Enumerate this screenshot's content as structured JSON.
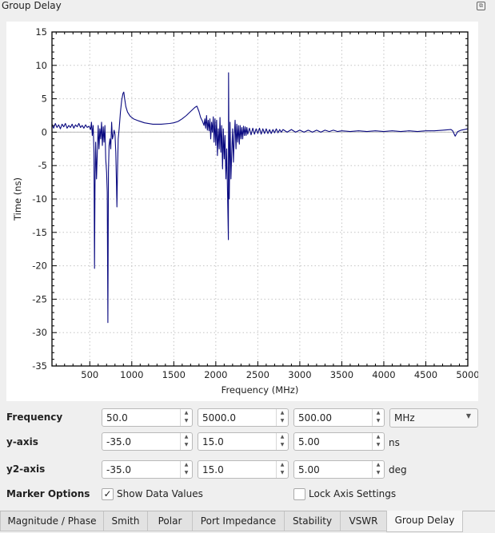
{
  "window": {
    "title": "Group Delay"
  },
  "controls": {
    "frequency": {
      "label": "Frequency",
      "start": "50.0",
      "stop": "5000.0",
      "step": "500.00",
      "unit": "MHz"
    },
    "y_axis": {
      "label": "y-axis",
      "min": "-35.0",
      "max": "15.0",
      "step": "5.00",
      "unit": "ns"
    },
    "y2_axis": {
      "label": "y2-axis",
      "min": "-35.0",
      "max": "15.0",
      "step": "5.00",
      "unit": "deg"
    },
    "marker": {
      "label": "Marker Options",
      "show_data_values": "Show Data Values",
      "show_checked": true,
      "lock_axis": "Lock Axis Settings",
      "lock_checked": false
    }
  },
  "tabs": [
    {
      "label": "Magnitude / Phase"
    },
    {
      "label": "Smith"
    },
    {
      "label": "Polar"
    },
    {
      "label": "Port Impedance"
    },
    {
      "label": "Stability"
    },
    {
      "label": "VSWR"
    },
    {
      "label": "Group Delay",
      "active": true
    }
  ],
  "chart_data": {
    "type": "line",
    "xlabel": "Frequency (MHz)",
    "ylabel": "Time (ns)",
    "xlim": [
      50,
      5000
    ],
    "ylim": [
      -35,
      15
    ],
    "xticks": [
      "500",
      "1000",
      "1500",
      "2000",
      "2500",
      "3000",
      "3500",
      "4000",
      "4500",
      "5000"
    ],
    "yticks": [
      "15",
      "10",
      "5",
      "0",
      "-5",
      "-10",
      "-15",
      "-20",
      "-25",
      "-30",
      "-35"
    ],
    "grid": true,
    "line_color": "#0a0a80",
    "series": [
      {
        "x": [
          50,
          70,
          90,
          110,
          130,
          150,
          170,
          190,
          210,
          230,
          250,
          270,
          290,
          310,
          330,
          350,
          370,
          390,
          410,
          430,
          450,
          470,
          490,
          510,
          520,
          530,
          540,
          550,
          556,
          562,
          570,
          580,
          590,
          600,
          610,
          620,
          630,
          640,
          650,
          660,
          670,
          680,
          690,
          700,
          708,
          715,
          722,
          730,
          740,
          750,
          760,
          770,
          780,
          790,
          800,
          810,
          818,
          823,
          830,
          838,
          850,
          865,
          880,
          895,
          905,
          915,
          930,
          950,
          980,
          1020,
          1080,
          1150,
          1250,
          1350,
          1450,
          1500,
          1550,
          1600,
          1650,
          1700,
          1750,
          1775,
          1800,
          1820,
          1840,
          1860,
          1870,
          1880,
          1890,
          1900,
          1910,
          1920,
          1930,
          1940,
          1950,
          1960,
          1970,
          1980,
          1990,
          2000,
          2010,
          2020,
          2030,
          2040,
          2050,
          2060,
          2070,
          2080,
          2090,
          2100,
          2110,
          2120,
          2130,
          2140,
          2150,
          2152,
          2160,
          2170,
          2180,
          2190,
          2200,
          2210,
          2220,
          2230,
          2240,
          2250,
          2260,
          2270,
          2280,
          2290,
          2300,
          2310,
          2320,
          2330,
          2340,
          2350,
          2360,
          2370,
          2380,
          2400,
          2420,
          2440,
          2460,
          2480,
          2500,
          2520,
          2540,
          2560,
          2580,
          2600,
          2620,
          2640,
          2660,
          2680,
          2700,
          2720,
          2740,
          2760,
          2780,
          2800,
          2850,
          2900,
          2950,
          3000,
          3050,
          3100,
          3150,
          3200,
          3250,
          3300,
          3350,
          3400,
          3450,
          3500,
          3600,
          3700,
          3800,
          3900,
          4000,
          4100,
          4200,
          4300,
          4400,
          4500,
          4600,
          4700,
          4800,
          4820,
          4850,
          4880,
          4920,
          4960,
          5000
        ],
        "y": [
          1.2,
          0.6,
          1.3,
          0.7,
          1.1,
          0.5,
          1.2,
          0.8,
          1.3,
          0.6,
          1.0,
          0.7,
          1.2,
          0.6,
          1.1,
          0.8,
          1.3,
          0.7,
          1.0,
          0.6,
          1.1,
          0.7,
          0.9,
          0.4,
          1.5,
          -0.5,
          1.0,
          -3.0,
          -20.4,
          -8,
          -1.5,
          -7,
          -3,
          1.0,
          -2.5,
          0.5,
          -1.0,
          1.5,
          -2.0,
          0.8,
          -1.5,
          1.0,
          -4.0,
          -6.0,
          -9,
          -28.5,
          -6,
          -2.0,
          -1.0,
          -2.5,
          1.5,
          -1.0,
          -0.5,
          0.3,
          -0.3,
          -3,
          -8,
          -11.2,
          -6,
          -1.0,
          0.5,
          3,
          4.8,
          5.8,
          6.0,
          5.0,
          3.8,
          3.0,
          2.4,
          2.0,
          1.7,
          1.4,
          1.2,
          1.2,
          1.3,
          1.4,
          1.6,
          2.0,
          2.5,
          3.1,
          3.7,
          3.9,
          3.1,
          2.2,
          1.7,
          1.0,
          2.0,
          0.6,
          2.5,
          0.3,
          1.8,
          0.2,
          2.0,
          -1.0,
          1.5,
          0.0,
          2.3,
          -1.5,
          2.0,
          -2.0,
          1.8,
          -3.5,
          0.5,
          -2.5,
          2.2,
          -3.0,
          1.0,
          -5.5,
          0.5,
          -4.0,
          -0.5,
          -7,
          -2.5,
          -9.5,
          -16.1,
          8.9,
          -10,
          1.5,
          -7,
          -3,
          0.5,
          -4.5,
          -0.5,
          1.8,
          -2.5,
          1.2,
          -1.5,
          1.0,
          -1.8,
          1.0,
          -1.0,
          0.7,
          -1.0,
          0.9,
          -0.5,
          0.8,
          -0.5,
          0.7,
          -0.3,
          0.6,
          -0.4,
          0.6,
          -0.3,
          0.5,
          -0.2,
          0.6,
          -0.3,
          0.5,
          -0.2,
          0.5,
          -0.2,
          0.4,
          -0.2,
          0.4,
          -0.1,
          0.5,
          -0.1,
          0.4,
          0.0,
          0.4,
          0.0,
          0.4,
          0.0,
          0.3,
          0.0,
          0.3,
          0.0,
          0.3,
          0.0,
          0.3,
          0.1,
          0.3,
          0.1,
          0.2,
          0.1,
          0.2,
          0.1,
          0.2,
          0.1,
          0.2,
          0.1,
          0.2,
          0.1,
          0.2,
          0.2,
          0.3,
          0.4,
          0.2,
          -0.6,
          0.1,
          0.3,
          0.4,
          0.5
        ]
      }
    ]
  }
}
